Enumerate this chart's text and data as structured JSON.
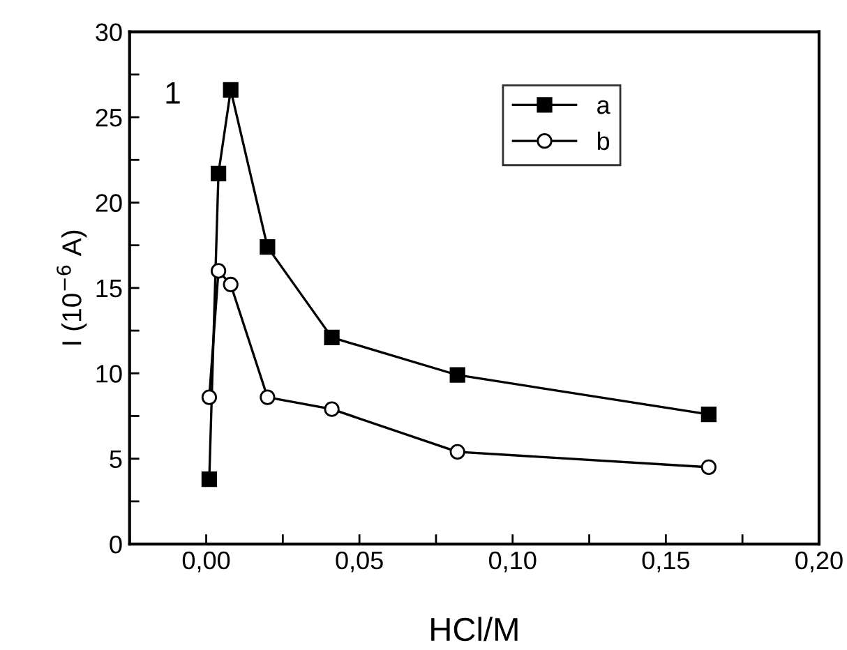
{
  "chart_data": {
    "type": "line",
    "xlabel": "HCl/M",
    "ylabel": "I (10$^{−6}$ A)",
    "annotations": [
      "1"
    ],
    "xlim": [
      -0.025,
      0.2
    ],
    "xticks": [
      {
        "value": -0.025,
        "label": null
      },
      {
        "value": 0,
        "label": "0,00"
      },
      {
        "value": 0.025,
        "label": null
      },
      {
        "value": 0.05,
        "label": "0,05"
      },
      {
        "value": 0.075,
        "label": null
      },
      {
        "value": 0.1,
        "label": "0,10"
      },
      {
        "value": 0.125,
        "label": null
      },
      {
        "value": 0.15,
        "label": "0,15"
      },
      {
        "value": 0.175,
        "label": null
      },
      {
        "value": 0.2,
        "label": "0,20"
      }
    ],
    "ylim": [
      0,
      30
    ],
    "yticks": [
      0,
      {
        "value": 2.5,
        "label": null
      },
      5,
      {
        "value": 7.5,
        "label": null
      },
      10,
      {
        "value": 12.5,
        "label": null
      },
      15,
      {
        "value": 17.5,
        "label": null
      },
      20,
      {
        "value": 22.5,
        "label": null
      },
      25,
      {
        "value": 27.5,
        "label": null
      },
      30
    ],
    "x": [
      0.001,
      0.004,
      0.008,
      0.02,
      0.041,
      0.082,
      0.164
    ],
    "legend": "top right",
    "grid": false,
    "line_style": "solid",
    "series": [
      {
        "name": "a",
        "color": "#000000",
        "marker": "square",
        "values": [
          3.8,
          21.7,
          26.6,
          17.4,
          12.1,
          9.9,
          7.6
        ]
      },
      {
        "name": "b",
        "color": "#000000",
        "marker": "circle",
        "values": [
          8.6,
          16.0,
          15.2,
          8.6,
          7.9,
          5.4,
          4.5
        ]
      }
    ]
  }
}
